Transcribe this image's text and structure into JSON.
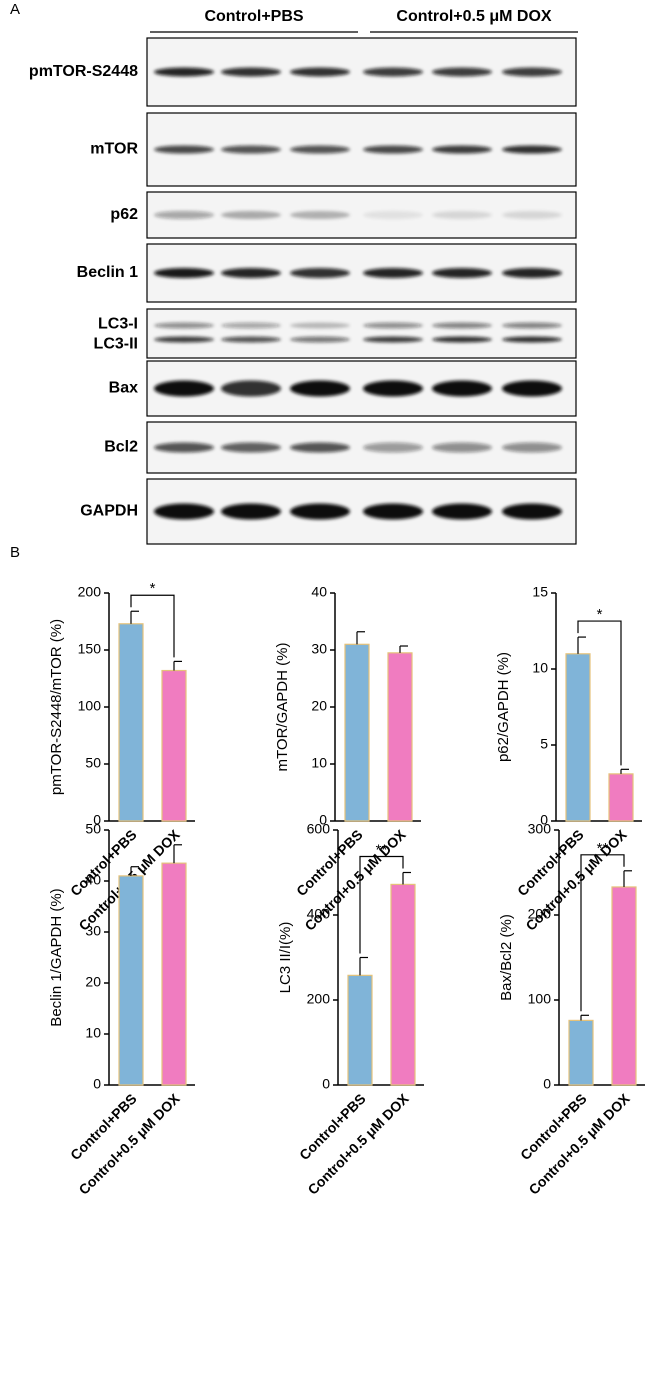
{
  "panel_labels": [
    "A",
    "B"
  ],
  "blot": {
    "groups": [
      "Control+PBS",
      "Control+0.5 μM DOX"
    ],
    "rows": [
      "pmTOR-S2448",
      "mTOR",
      "p62",
      "Beclin 1",
      [
        "LC3-I",
        "LC3-II"
      ],
      "Bax",
      "Bcl2",
      "GAPDH"
    ]
  },
  "chart_data": [
    {
      "type": "bar",
      "y_label": "pmTOR-S2448/mTOR (%)",
      "categories": [
        "Control+PBS",
        "Control+0.5 μM DOX"
      ],
      "values": [
        173,
        132
      ],
      "errors": [
        11,
        8
      ],
      "colors": [
        "#80b4d8",
        "#f07cc0"
      ],
      "ylim": [
        0,
        200
      ],
      "yticks": [
        0,
        50,
        100,
        150,
        200
      ],
      "significance": "*"
    },
    {
      "type": "bar",
      "y_label": "mTOR/GAPDH (%)",
      "categories": [
        "Control+PBS",
        "Control+0.5 μM DOX"
      ],
      "values": [
        31,
        29.5
      ],
      "errors": [
        2.2,
        1.2
      ],
      "colors": [
        "#80b4d8",
        "#f07cc0"
      ],
      "ylim": [
        0,
        40
      ],
      "yticks": [
        0,
        10,
        20,
        30,
        40
      ]
    },
    {
      "type": "bar",
      "y_label": "p62/GAPDH (%)",
      "categories": [
        "Control+PBS",
        "Control+0.5 μM DOX"
      ],
      "values": [
        11,
        3.1
      ],
      "errors": [
        1.1,
        0.3
      ],
      "colors": [
        "#80b4d8",
        "#f07cc0"
      ],
      "ylim": [
        0,
        15
      ],
      "yticks": [
        0,
        5,
        10,
        15
      ],
      "significance": "*"
    },
    {
      "type": "bar",
      "y_label": "Beclin 1/GAPDH (%)",
      "categories": [
        "Control+PBS",
        "Control+0.5 μM DOX"
      ],
      "values": [
        41,
        43.5
      ],
      "errors": [
        1.8,
        3.6
      ],
      "colors": [
        "#80b4d8",
        "#f07cc0"
      ],
      "ylim": [
        0,
        50
      ],
      "yticks": [
        0,
        10,
        20,
        30,
        40,
        50
      ]
    },
    {
      "type": "bar",
      "y_label": "LC3 II/I(%)",
      "categories": [
        "Control+PBS",
        "Control+0.5 μM DOX"
      ],
      "values": [
        258,
        472
      ],
      "errors": [
        42,
        28
      ],
      "colors": [
        "#80b4d8",
        "#f07cc0"
      ],
      "ylim": [
        0,
        600
      ],
      "yticks": [
        0,
        200,
        400,
        600
      ],
      "significance": "**"
    },
    {
      "type": "bar",
      "y_label": "Bax/Bcl2 (%)",
      "categories": [
        "Control+PBS",
        "Control+0.5 μM DOX"
      ],
      "values": [
        76,
        233
      ],
      "errors": [
        6,
        19
      ],
      "colors": [
        "#80b4d8",
        "#f07cc0"
      ],
      "ylim": [
        0,
        300
      ],
      "yticks": [
        0,
        100,
        200,
        300
      ],
      "significance": "**"
    }
  ]
}
